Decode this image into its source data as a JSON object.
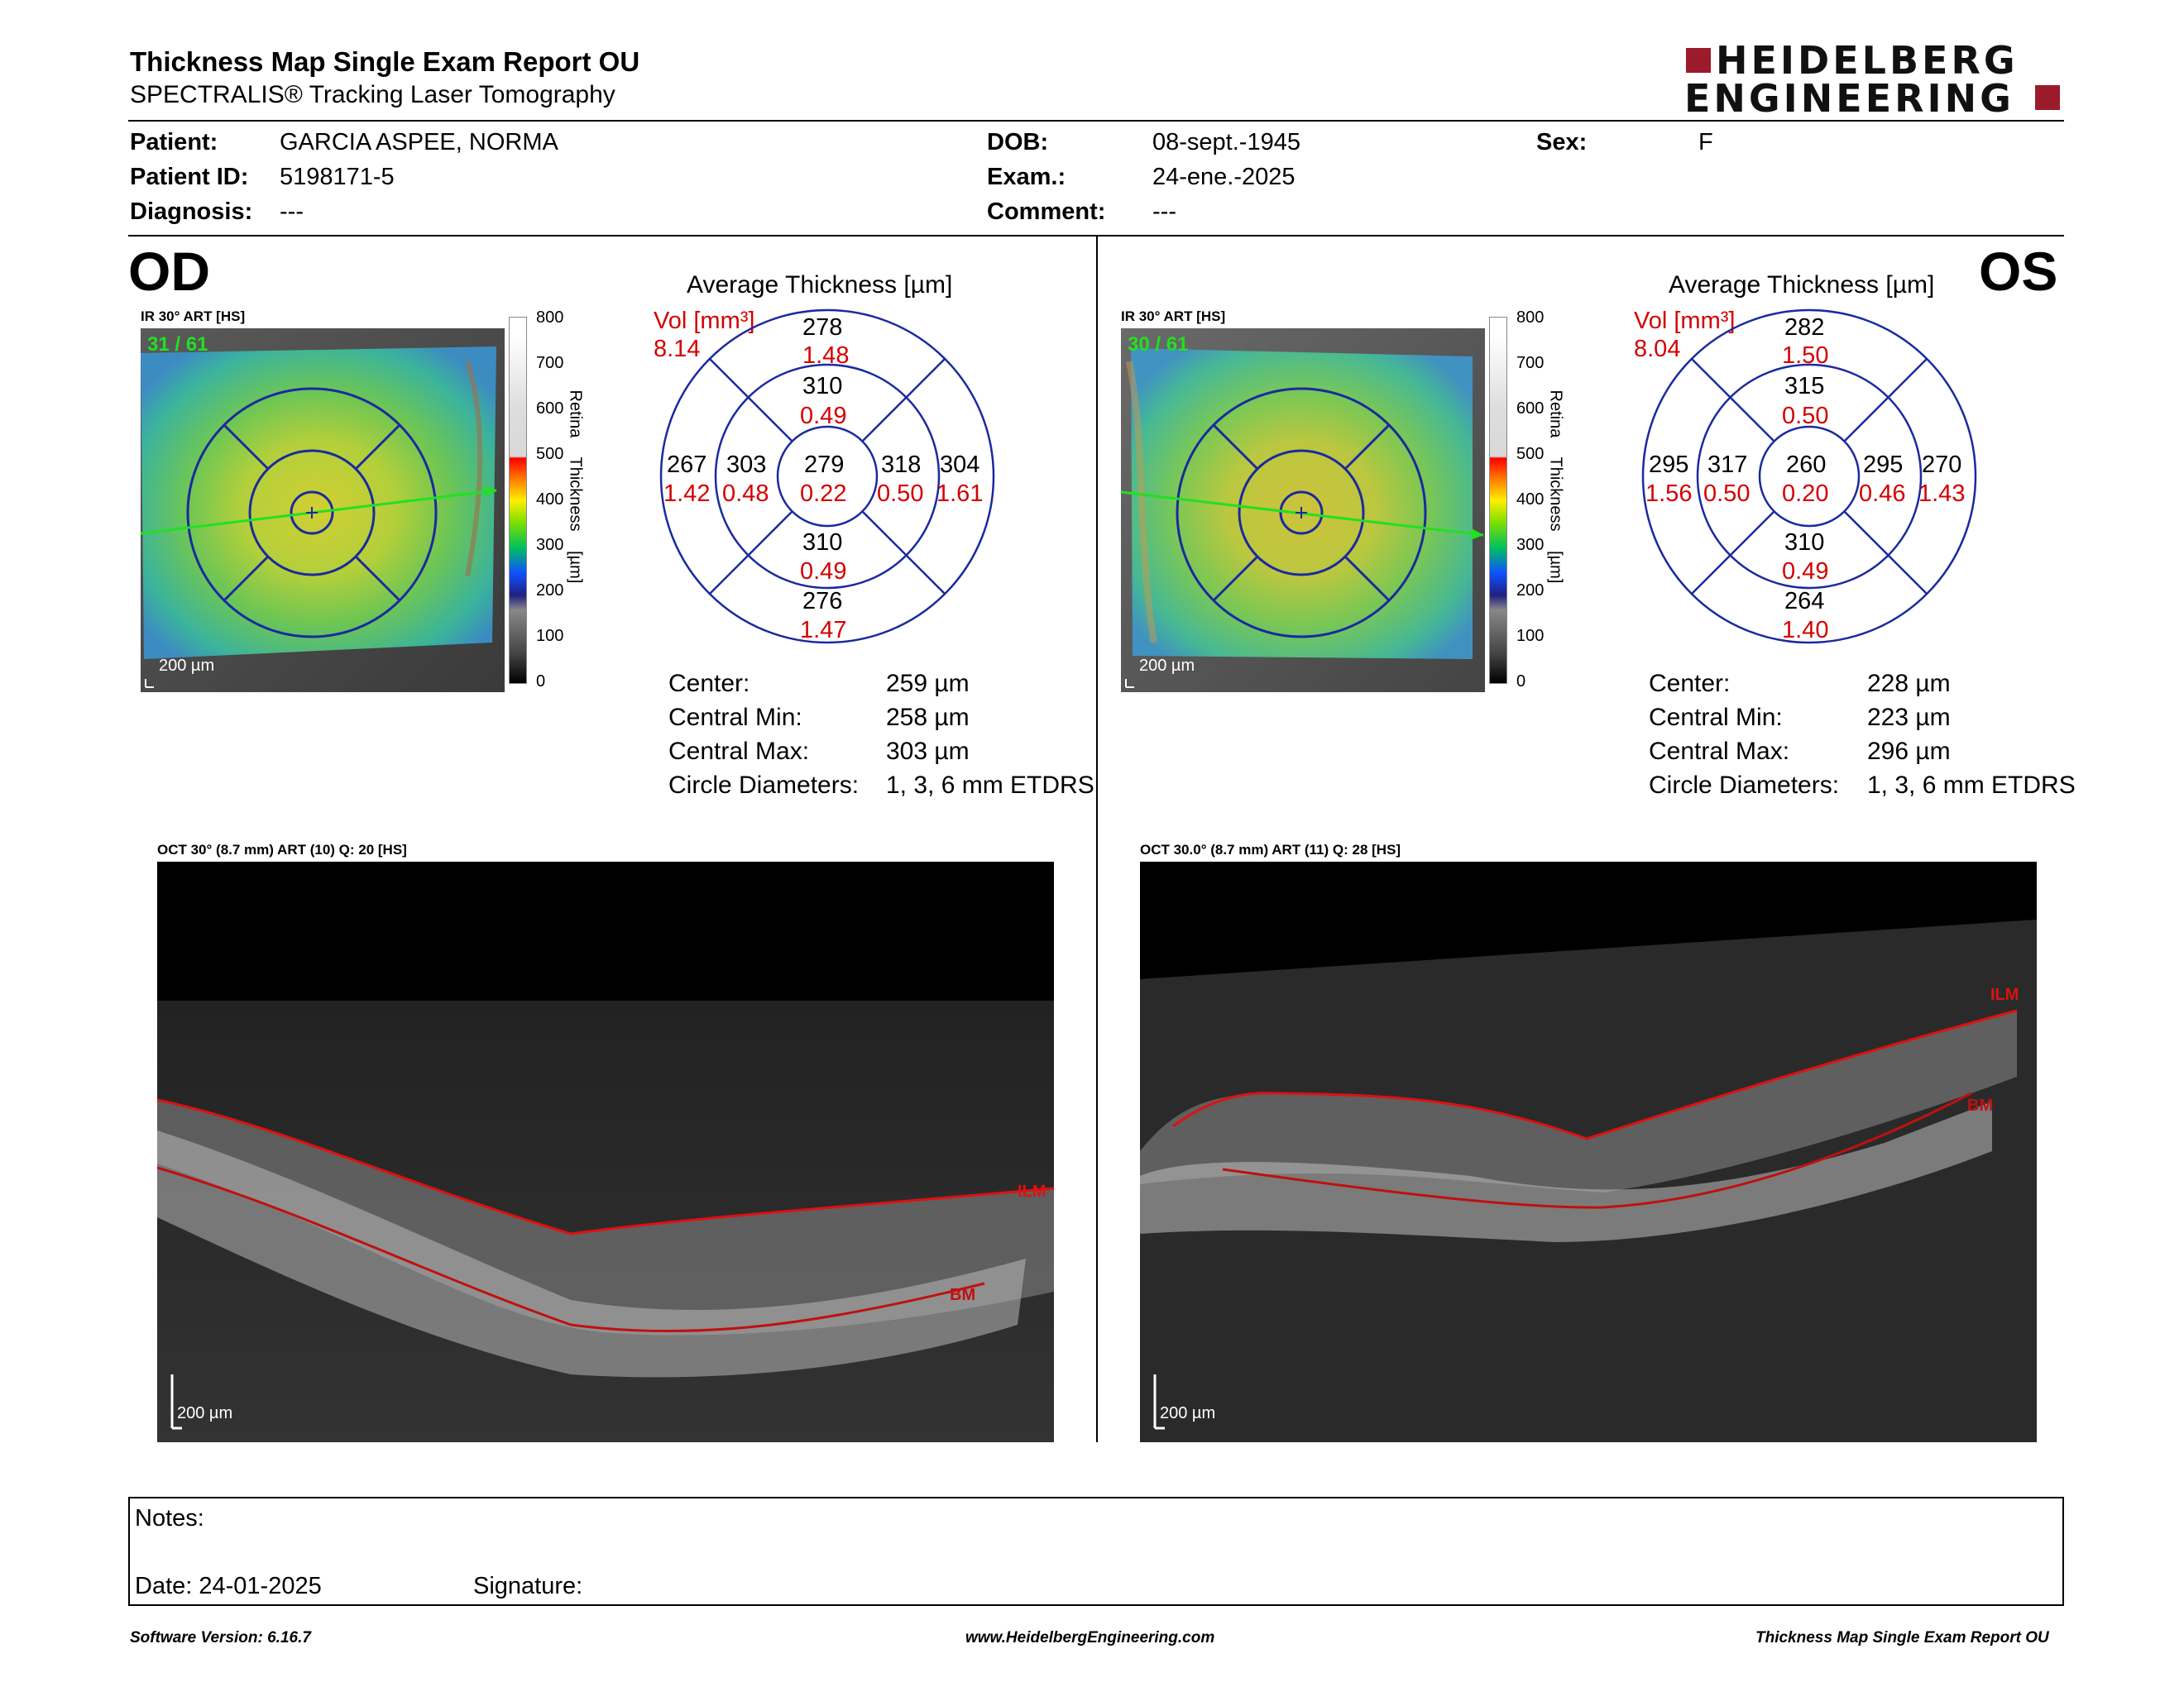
{
  "header": {
    "title": "Thickness Map Single Exam Report OU",
    "subtitle": "SPECTRALIS® Tracking Laser Tomography",
    "logo_line1": "HEIDELBERG",
    "logo_line2": "ENGINEERING"
  },
  "patient": {
    "patient_label": "Patient:",
    "patient_value": "GARCIA ASPEE, NORMA",
    "id_label": "Patient ID:",
    "id_value": "5198171-5",
    "diagnosis_label": "Diagnosis:",
    "diagnosis_value": "---",
    "dob_label": "DOB:",
    "dob_value": "08-sept.-1945",
    "exam_label": "Exam.:",
    "exam_value": "24-ene.-2025",
    "comment_label": "Comment:",
    "comment_value": "---",
    "sex_label": "Sex:",
    "sex_value": "F"
  },
  "od": {
    "eye": "OD",
    "ir_label": "IR 30° ART [HS]",
    "frames": "31 / 61",
    "scalebar": "200 µm",
    "avg_title": "Average Thickness [µm]",
    "vol_label": "Vol [mm³]",
    "vol_total": "8.14",
    "grid": {
      "center": [
        "279",
        "0.22"
      ],
      "inner_sup": [
        "310",
        "0.49"
      ],
      "inner_inf": [
        "310",
        "0.49"
      ],
      "inner_temp_left": [
        "303",
        "0.48"
      ],
      "inner_right": [
        "318",
        "0.50"
      ],
      "outer_sup": [
        "278",
        "1.48"
      ],
      "outer_inf": [
        "276",
        "1.47"
      ],
      "outer_left": [
        "267",
        "1.42"
      ],
      "outer_right": [
        "304",
        "1.61"
      ]
    },
    "stats": [
      {
        "label": "Center:",
        "value": "259 µm"
      },
      {
        "label": "Central Min:",
        "value": "258 µm"
      },
      {
        "label": "Central Max:",
        "value": "303 µm"
      },
      {
        "label": "Circle Diameters:",
        "value": "1, 3, 6 mm ETDRS"
      }
    ],
    "oct_label": "OCT 30° (8.7 mm) ART (10) Q: 20 [HS]",
    "oct_scalebar": "200 µm",
    "ilm": "ILM",
    "bm": "BM"
  },
  "os": {
    "eye": "OS",
    "ir_label": "IR 30° ART [HS]",
    "frames": "30 / 61",
    "scalebar": "200 µm",
    "avg_title": "Average Thickness [µm]",
    "vol_label": "Vol [mm³]",
    "vol_total": "8.04",
    "grid": {
      "center": [
        "260",
        "0.20"
      ],
      "inner_sup": [
        "315",
        "0.50"
      ],
      "inner_inf": [
        "310",
        "0.49"
      ],
      "inner_temp_left": [
        "317",
        "0.50"
      ],
      "inner_right": [
        "295",
        "0.46"
      ],
      "outer_sup": [
        "282",
        "1.50"
      ],
      "outer_inf": [
        "264",
        "1.40"
      ],
      "outer_left": [
        "295",
        "1.56"
      ],
      "outer_right": [
        "270",
        "1.43"
      ]
    },
    "stats": [
      {
        "label": "Center:",
        "value": "228 µm"
      },
      {
        "label": "Central Min:",
        "value": "223 µm"
      },
      {
        "label": "Central Max:",
        "value": "296 µm"
      },
      {
        "label": "Circle Diameters:",
        "value": "1, 3, 6 mm ETDRS"
      }
    ],
    "oct_label": "OCT 30.0° (8.7 mm) ART (11) Q: 28 [HS]",
    "oct_scalebar": "200 µm",
    "ilm": "ILM",
    "bm": "BM"
  },
  "colorscale": {
    "ticks": [
      "800",
      "700",
      "600",
      "500",
      "400",
      "300",
      "200",
      "100",
      "0"
    ],
    "title": "Retina Thickness [µm]"
  },
  "notes": {
    "notes_label": "Notes:",
    "date_label": "Date: 24-01-2025",
    "signature_label": "Signature:"
  },
  "footer": {
    "software": "Software Version: 6.16.7",
    "website": "www.HeidelbergEngineering.com",
    "report": "Thickness Map Single Exam Report OU"
  },
  "colors": {
    "brand": "#9b1b2a",
    "grid_blue": "#1a2a9e",
    "volume_red": "#d40000",
    "thickness_green": "#22e022"
  }
}
